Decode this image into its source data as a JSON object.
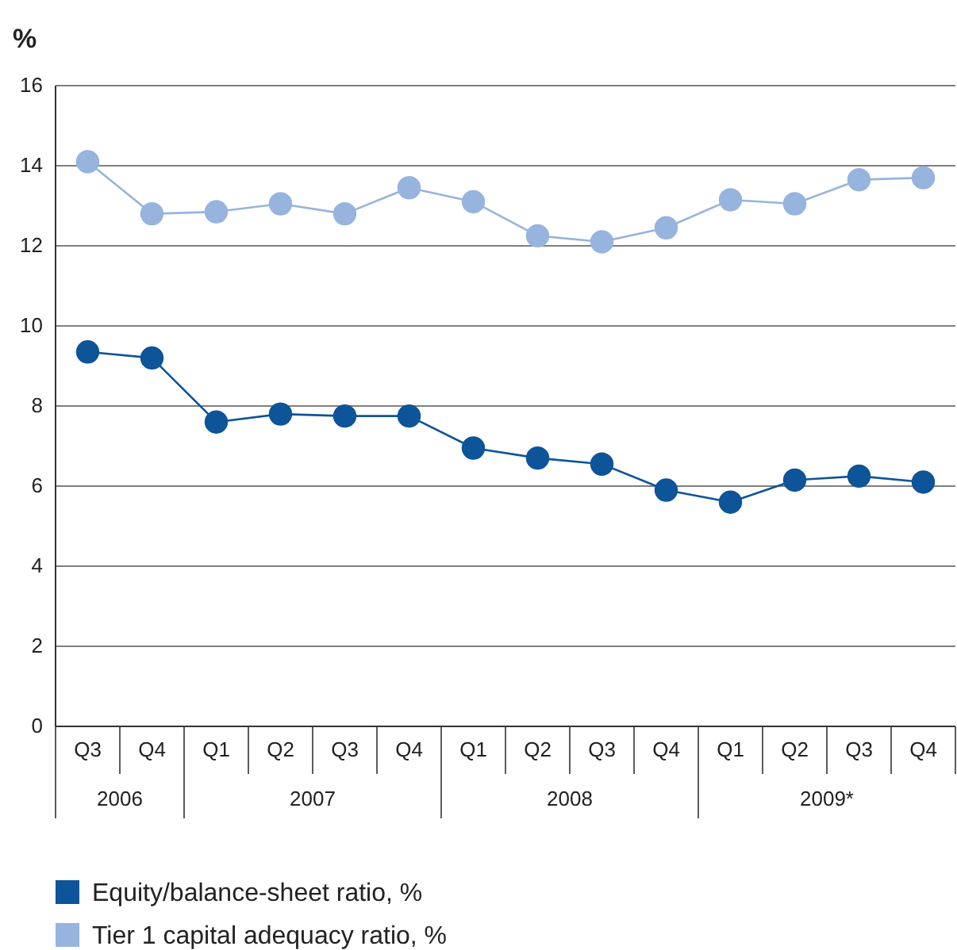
{
  "chart_data": {
    "type": "line",
    "ylabel": "%",
    "categories": [
      "Q3",
      "Q4",
      "Q1",
      "Q2",
      "Q3",
      "Q4",
      "Q1",
      "Q2",
      "Q3",
      "Q4",
      "Q1",
      "Q2",
      "Q3",
      "Q4"
    ],
    "annotations": [
      "2006",
      "2007",
      "2008",
      "2009*"
    ],
    "ylim": [
      0,
      16
    ],
    "yticks": [
      0,
      2,
      4,
      6,
      8,
      10,
      12,
      14,
      16
    ],
    "grid": "y",
    "legend": "bottom",
    "marker": "circle",
    "line_style": "solid",
    "series": [
      {
        "name": "Equity/balance-sheet ratio, %",
        "color": "#0d5499",
        "values": [
          9.35,
          9.2,
          7.6,
          7.8,
          7.75,
          7.75,
          6.95,
          6.7,
          6.55,
          5.9,
          5.6,
          6.15,
          6.25,
          6.1
        ]
      },
      {
        "name": "Tier 1 capital adequacy ratio, %",
        "color": "#96b4de",
        "values": [
          14.1,
          12.8,
          12.85,
          13.05,
          12.8,
          13.45,
          13.1,
          12.25,
          12.1,
          12.45,
          13.15,
          13.05,
          13.65,
          13.7
        ]
      }
    ]
  }
}
